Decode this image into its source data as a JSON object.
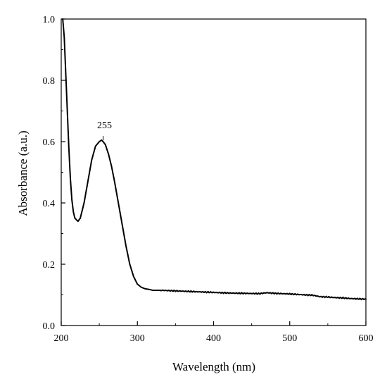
{
  "chart_data": {
    "type": "line",
    "xlabel": "Wavelength (nm)",
    "ylabel": "Absorbance (a.u.)",
    "xlim": [
      200,
      600
    ],
    "ylim": [
      0.0,
      1.0
    ],
    "x_ticks": [
      "200",
      "300",
      "400",
      "500",
      "600"
    ],
    "y_ticks": [
      "0.0",
      "0.2",
      "0.4",
      "0.6",
      "0.8",
      "1.0"
    ],
    "grid": false,
    "annotations": [
      {
        "text": "255",
        "x": 255,
        "y": 0.6
      }
    ],
    "series": [
      {
        "color": "#000000",
        "x": [
          202,
          204,
          206,
          208,
          210,
          212,
          214,
          216,
          218,
          220,
          222,
          225,
          230,
          235,
          240,
          245,
          250,
          253,
          255,
          258,
          262,
          266,
          270,
          275,
          280,
          285,
          290,
          295,
          300,
          305,
          310,
          315,
          320,
          330,
          340,
          350,
          360,
          370,
          380,
          400,
          420,
          440,
          460,
          470,
          480,
          500,
          520,
          530,
          540,
          550,
          560,
          570,
          580,
          590,
          600
        ],
        "y": [
          1.0,
          0.94,
          0.82,
          0.7,
          0.58,
          0.48,
          0.41,
          0.37,
          0.35,
          0.345,
          0.34,
          0.35,
          0.4,
          0.47,
          0.54,
          0.585,
          0.6,
          0.605,
          0.6,
          0.59,
          0.56,
          0.52,
          0.47,
          0.4,
          0.33,
          0.26,
          0.2,
          0.16,
          0.135,
          0.125,
          0.12,
          0.118,
          0.115,
          0.115,
          0.114,
          0.113,
          0.112,
          0.111,
          0.11,
          0.108,
          0.106,
          0.105,
          0.104,
          0.107,
          0.105,
          0.103,
          0.1,
          0.099,
          0.094,
          0.093,
          0.091,
          0.09,
          0.088,
          0.087,
          0.086
        ]
      }
    ]
  }
}
